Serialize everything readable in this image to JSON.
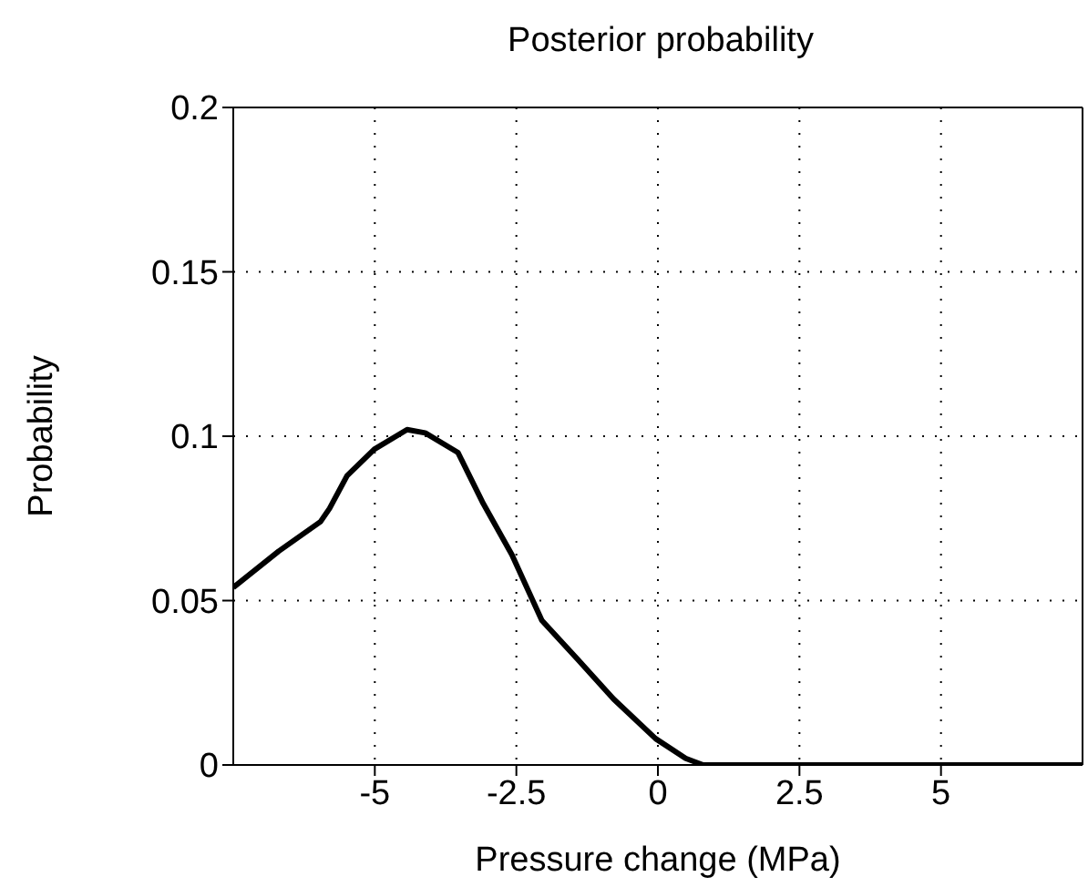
{
  "chart_data": {
    "type": "line",
    "title": "Posterior probability",
    "xlabel": "Pressure change (MPa)",
    "ylabel": "Probability",
    "xlim": [
      -7.5,
      7.5
    ],
    "ylim": [
      0,
      0.2
    ],
    "xticks": [
      -5,
      -2.5,
      0,
      2.5,
      5
    ],
    "yticks": [
      0,
      0.05,
      0.1,
      0.15,
      0.2
    ],
    "grid": true,
    "line_style": "solid",
    "x": [
      -7.5,
      -6.7,
      -5.96,
      -5.8,
      -5.49,
      -5.01,
      -4.43,
      -4.11,
      -3.53,
      -3.1,
      -2.58,
      -2.05,
      -1.41,
      -0.78,
      -0.04,
      0.49,
      0.8,
      2,
      4,
      6,
      7.5
    ],
    "series": [
      {
        "color": "#000000",
        "values": [
          0.054,
          0.065,
          0.074,
          0.078,
          0.088,
          0.096,
          0.102,
          0.101,
          0.095,
          0.08,
          0.064,
          0.044,
          0.032,
          0.02,
          0.008,
          0.002,
          0,
          0,
          0,
          0,
          0
        ]
      }
    ]
  }
}
